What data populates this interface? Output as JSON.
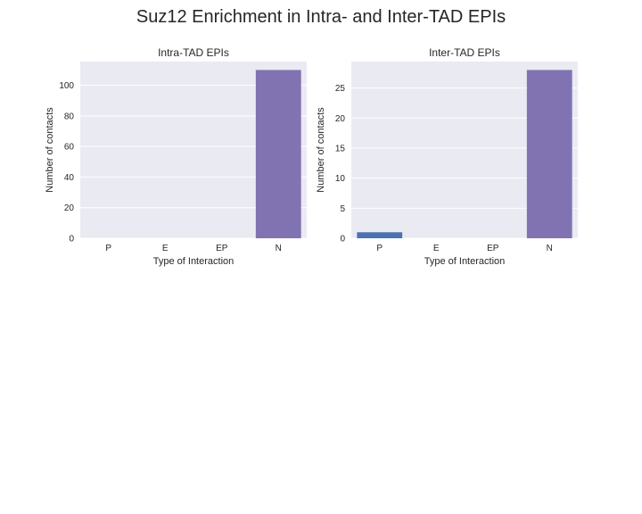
{
  "figure": {
    "title": "Suz12 Enrichment in Intra- and Inter-TAD EPIs"
  },
  "colors": {
    "background": "#EAEAF2",
    "grid": "#FFFFFF",
    "P": "#4C72B0",
    "E": "#55A868",
    "EP": "#C44E52",
    "N": "#8172B2"
  },
  "chart_data": [
    {
      "type": "bar",
      "title": "Intra-TAD EPIs",
      "categories": [
        "P",
        "E",
        "EP",
        "N"
      ],
      "values": [
        0,
        0,
        0,
        110
      ],
      "xlabel": "Type of Interaction",
      "ylabel": "Number of contacts",
      "ylim": [
        0,
        115.5
      ],
      "yticks": [
        0,
        20,
        40,
        60,
        80,
        100
      ],
      "grid": true
    },
    {
      "type": "bar",
      "title": "Inter-TAD EPIs",
      "categories": [
        "P",
        "E",
        "EP",
        "N"
      ],
      "values": [
        1,
        0,
        0,
        28
      ],
      "xlabel": "Type of Interaction",
      "ylabel": "Number of contacts",
      "ylim": [
        0,
        29.4
      ],
      "yticks": [
        0,
        5,
        10,
        15,
        20,
        25
      ],
      "grid": true
    }
  ]
}
